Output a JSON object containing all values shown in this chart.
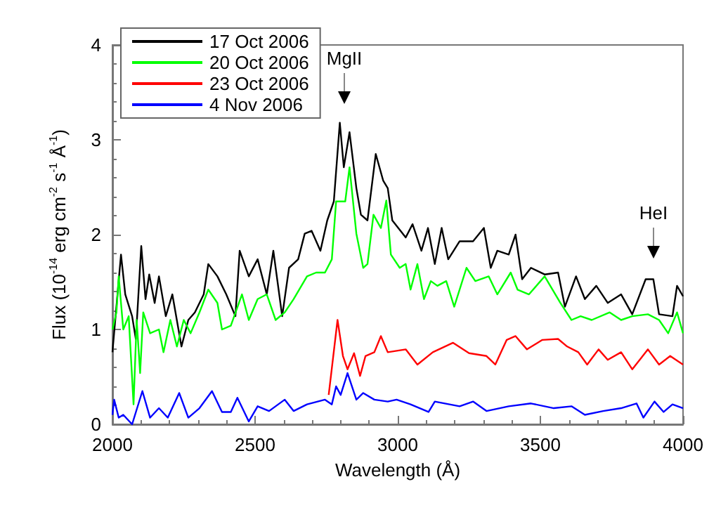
{
  "chart_data": {
    "type": "line",
    "xlabel": "Wavelength (Å)",
    "ylabel": "Flux (10$^{-14}$ erg cm$^{-2}$ s$^{-1}$ Å$^{-1}$)",
    "xlim": [
      2000,
      4000
    ],
    "xticks": [
      2000,
      2500,
      3000,
      3500,
      4000
    ],
    "ylim": [
      0,
      4
    ],
    "yticks": [
      0,
      1,
      2,
      3,
      4
    ],
    "grid": false,
    "legend": "top left",
    "marker": "none",
    "line_style": "solid",
    "annotations": [
      "MgII",
      "HeI"
    ],
    "series": [
      {
        "name": "17 Oct 2006",
        "color": "#000000",
        "x": [
          2000,
          2030,
          2045,
          2069,
          2082,
          2101,
          2116,
          2129,
          2148,
          2163,
          2187,
          2210,
          2242,
          2266,
          2289,
          2320,
          2336,
          2368,
          2399,
          2431,
          2446,
          2478,
          2509,
          2541,
          2564,
          2595,
          2619,
          2651,
          2674,
          2698,
          2729,
          2753,
          2776,
          2797,
          2811,
          2831,
          2855,
          2871,
          2894,
          2923,
          2949,
          2965,
          2981,
          3028,
          3052,
          3083,
          3106,
          3130,
          3154,
          3177,
          3217,
          3264,
          3302,
          3326,
          3349,
          3389,
          3413,
          3436,
          3467,
          3515,
          3562,
          3586,
          3625,
          3656,
          3696,
          3736,
          3783,
          3822,
          3869,
          3896,
          3916,
          3963,
          3979,
          4000
        ],
        "values": [
          0.76,
          1.79,
          1.37,
          1.14,
          0.9,
          1.88,
          1.32,
          1.58,
          1.28,
          1.56,
          1.14,
          1.37,
          0.82,
          1.1,
          1.18,
          1.37,
          1.69,
          1.56,
          1.37,
          1.14,
          1.83,
          1.56,
          1.74,
          1.37,
          1.83,
          1.14,
          1.65,
          1.74,
          2.01,
          2.04,
          1.83,
          2.15,
          2.35,
          3.18,
          2.71,
          3.08,
          2.49,
          2.21,
          2.15,
          2.85,
          2.57,
          2.49,
          2.15,
          1.97,
          2.11,
          1.83,
          2.07,
          1.69,
          2.07,
          1.74,
          1.93,
          1.93,
          2.07,
          1.65,
          1.83,
          1.79,
          2.0,
          1.53,
          1.65,
          1.58,
          1.6,
          1.24,
          1.56,
          1.32,
          1.46,
          1.28,
          1.37,
          1.16,
          1.53,
          1.53,
          1.16,
          1.14,
          1.46,
          1.35
        ]
      },
      {
        "name": "20 Oct 2006",
        "color": "#00ff00",
        "x": [
          2000,
          2014,
          2022,
          2038,
          2057,
          2074,
          2085,
          2097,
          2108,
          2132,
          2163,
          2179,
          2203,
          2226,
          2250,
          2274,
          2305,
          2336,
          2368,
          2384,
          2415,
          2454,
          2478,
          2509,
          2541,
          2572,
          2604,
          2635,
          2682,
          2714,
          2745,
          2769,
          2784,
          2816,
          2831,
          2855,
          2879,
          2894,
          2915,
          2941,
          2960,
          2976,
          3007,
          3028,
          3045,
          3069,
          3092,
          3116,
          3139,
          3170,
          3198,
          3241,
          3272,
          3319,
          3349,
          3396,
          3420,
          3460,
          3515,
          3570,
          3609,
          3641,
          3680,
          3743,
          3783,
          3822,
          3877,
          3916,
          3948,
          3979,
          4000
        ],
        "values": [
          1.0,
          1.18,
          1.56,
          1.0,
          1.14,
          0.21,
          1.1,
          0.54,
          1.18,
          0.96,
          1.0,
          0.76,
          1.1,
          0.82,
          1.1,
          0.96,
          1.18,
          1.42,
          1.28,
          1.0,
          1.04,
          1.37,
          1.1,
          1.32,
          1.37,
          1.1,
          1.18,
          1.32,
          1.56,
          1.6,
          1.6,
          1.74,
          2.35,
          2.35,
          2.71,
          2.01,
          1.65,
          1.69,
          2.21,
          2.07,
          2.36,
          1.79,
          1.65,
          1.69,
          1.42,
          1.69,
          1.32,
          1.51,
          1.46,
          1.51,
          1.24,
          1.65,
          1.51,
          1.56,
          1.37,
          1.6,
          1.42,
          1.37,
          1.56,
          1.28,
          1.1,
          1.14,
          1.1,
          1.18,
          1.1,
          1.14,
          1.16,
          1.1,
          0.96,
          1.18,
          0.96
        ]
      },
      {
        "name": "23 Oct 2006",
        "color": "#ff0000",
        "x": [
          2758,
          2789,
          2808,
          2824,
          2847,
          2868,
          2887,
          2918,
          2941,
          2965,
          3028,
          3069,
          3123,
          3194,
          3250,
          3311,
          3342,
          3382,
          3413,
          3453,
          3507,
          3562,
          3594,
          3633,
          3664,
          3704,
          3736,
          3783,
          3822,
          3877,
          3916,
          3955,
          4000
        ],
        "values": [
          0.31,
          1.1,
          0.72,
          0.58,
          0.75,
          0.51,
          0.72,
          0.76,
          0.93,
          0.76,
          0.79,
          0.63,
          0.76,
          0.86,
          0.75,
          0.72,
          0.63,
          0.89,
          0.93,
          0.79,
          0.89,
          0.9,
          0.82,
          0.76,
          0.63,
          0.79,
          0.68,
          0.76,
          0.58,
          0.79,
          0.63,
          0.72,
          0.63
        ]
      },
      {
        "name": "4 Nov 2006",
        "color": "#0000ff",
        "x": [
          2000,
          2006,
          2022,
          2038,
          2069,
          2105,
          2132,
          2163,
          2194,
          2234,
          2266,
          2305,
          2349,
          2384,
          2415,
          2438,
          2478,
          2509,
          2549,
          2604,
          2635,
          2682,
          2745,
          2769,
          2784,
          2800,
          2824,
          2855,
          2879,
          2918,
          2965,
          2996,
          3045,
          3108,
          3130,
          3217,
          3264,
          3311,
          3389,
          3467,
          3547,
          3609,
          3656,
          3720,
          3783,
          3837,
          3861,
          3900,
          3932,
          3963,
          4000
        ],
        "values": [
          0.1,
          0.26,
          0.07,
          0.1,
          0.0,
          0.35,
          0.07,
          0.17,
          0.07,
          0.33,
          0.07,
          0.17,
          0.35,
          0.13,
          0.13,
          0.28,
          0.03,
          0.19,
          0.14,
          0.26,
          0.14,
          0.21,
          0.26,
          0.21,
          0.4,
          0.31,
          0.54,
          0.26,
          0.33,
          0.26,
          0.24,
          0.26,
          0.21,
          0.13,
          0.24,
          0.19,
          0.24,
          0.14,
          0.19,
          0.22,
          0.17,
          0.19,
          0.1,
          0.14,
          0.17,
          0.22,
          0.07,
          0.24,
          0.13,
          0.21,
          0.17
        ]
      }
    ]
  }
}
